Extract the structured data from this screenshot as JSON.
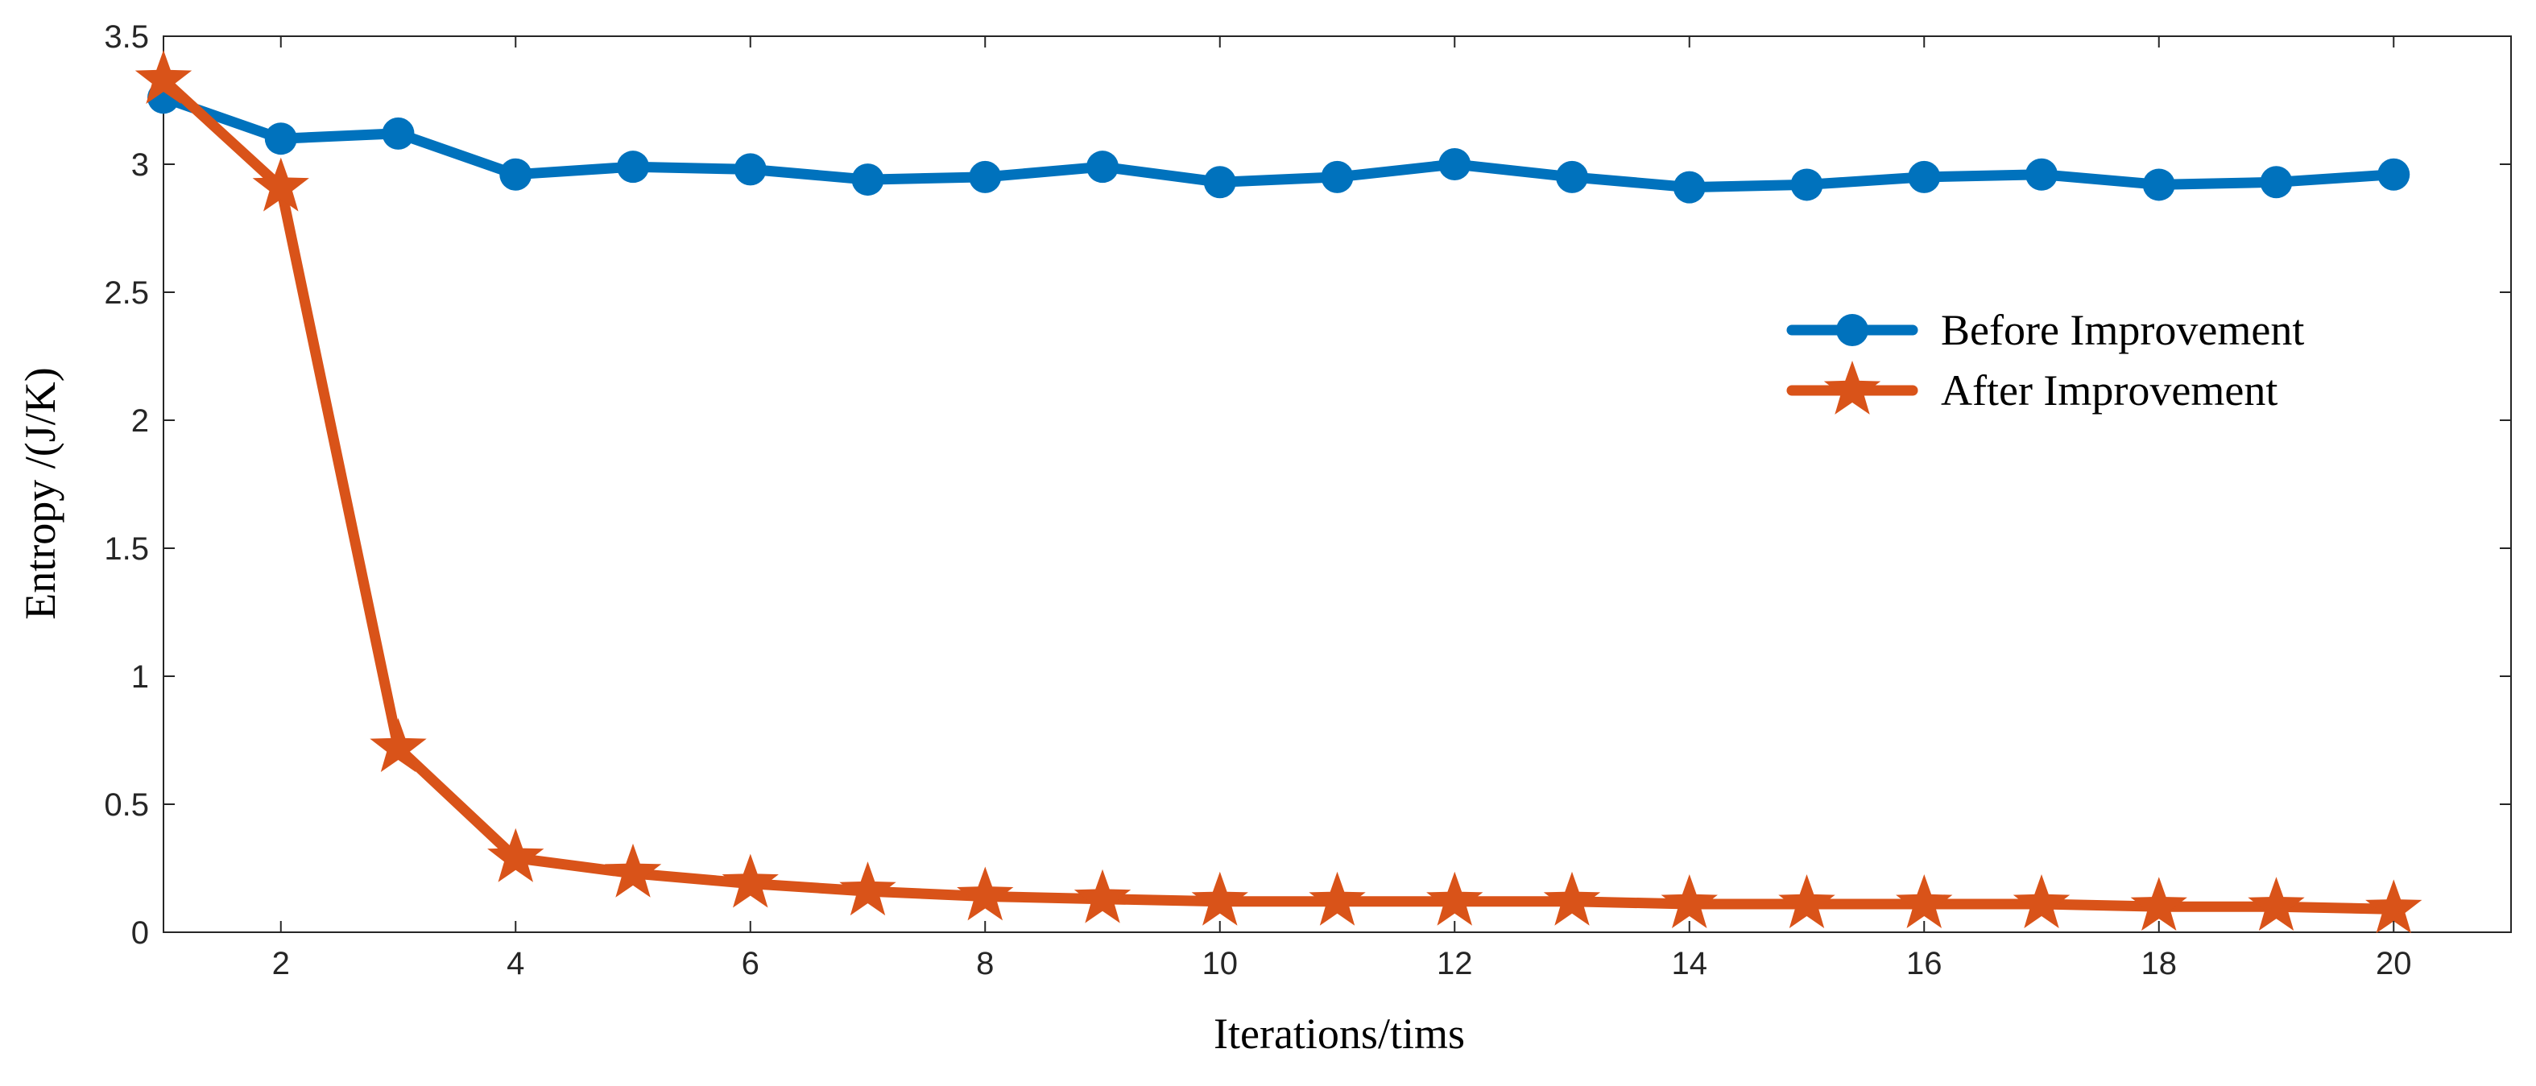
{
  "chart_data": {
    "type": "line",
    "title": "",
    "xlabel": "Iterations/tims",
    "ylabel": "Entropy /(J/K)",
    "xlim": [
      1,
      21
    ],
    "ylim": [
      0,
      3.5
    ],
    "xticks": [
      2,
      4,
      6,
      8,
      10,
      12,
      14,
      16,
      18,
      20
    ],
    "yticks": [
      0,
      0.5,
      1,
      1.5,
      2,
      2.5,
      3,
      3.5
    ],
    "ytick_labels": [
      "0",
      "0.5",
      "1",
      "1.5",
      "2",
      "2.5",
      "3",
      "3.5"
    ],
    "grid": false,
    "legend_position": "right",
    "x": [
      1,
      2,
      3,
      4,
      5,
      6,
      7,
      8,
      9,
      10,
      11,
      12,
      13,
      14,
      15,
      16,
      17,
      18,
      19,
      20
    ],
    "series": [
      {
        "name": "Before Improvement",
        "marker": "circle",
        "color": "#0072BD",
        "values": [
          3.26,
          3.1,
          3.12,
          2.96,
          2.99,
          2.98,
          2.94,
          2.95,
          2.99,
          2.93,
          2.95,
          3.0,
          2.95,
          2.91,
          2.92,
          2.95,
          2.96,
          2.92,
          2.93,
          2.96
        ]
      },
      {
        "name": "After Improvement",
        "marker": "star",
        "color": "#D95319",
        "values": [
          3.33,
          2.91,
          0.72,
          0.29,
          0.23,
          0.19,
          0.16,
          0.14,
          0.13,
          0.12,
          0.12,
          0.12,
          0.12,
          0.11,
          0.11,
          0.11,
          0.11,
          0.1,
          0.1,
          0.09
        ]
      }
    ]
  }
}
